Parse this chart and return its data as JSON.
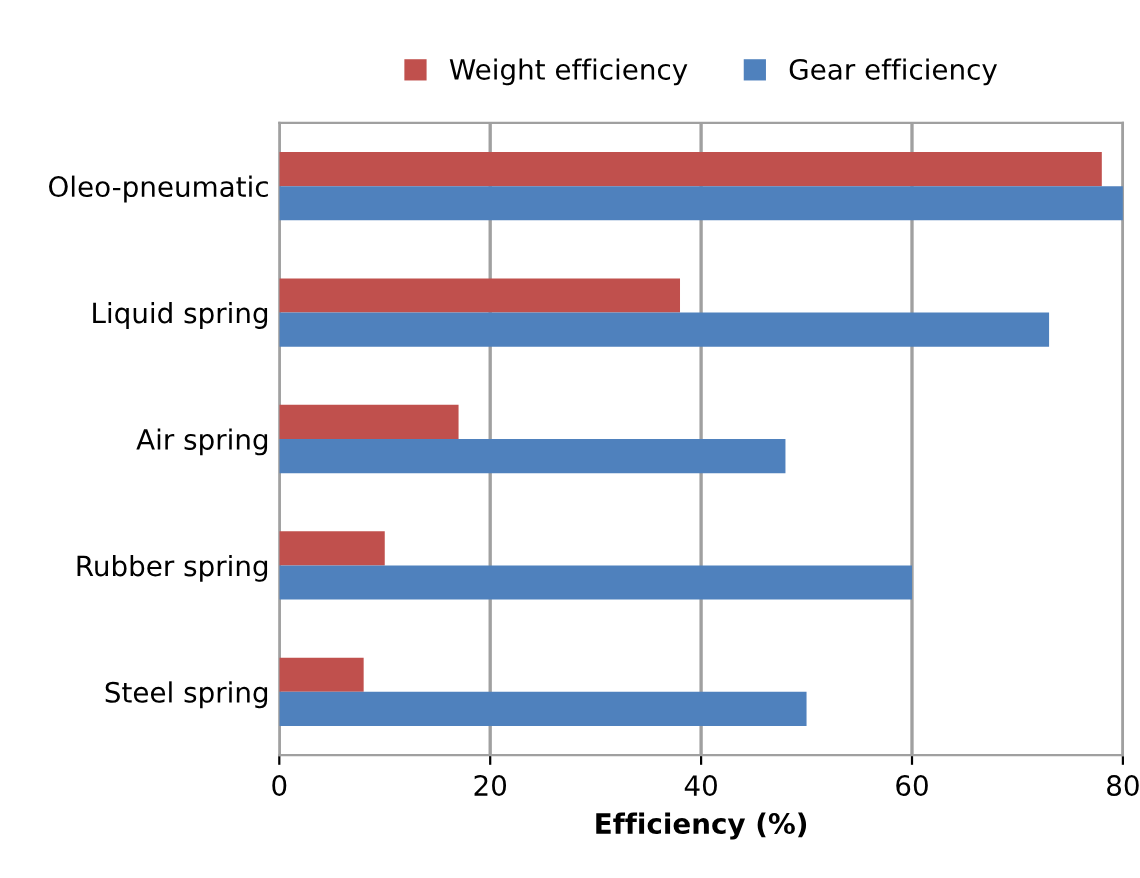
{
  "chart_data": {
    "type": "bar",
    "orientation": "horizontal",
    "categories": [
      "Oleo-pneumatic",
      "Liquid spring",
      "Air spring",
      "Rubber spring",
      "Steel spring"
    ],
    "series": [
      {
        "name": "Weight efficiency",
        "color": "#c0504d",
        "values": [
          78,
          38,
          17,
          10,
          8
        ]
      },
      {
        "name": "Gear efficiency",
        "color": "#4f81bd",
        "values": [
          80,
          73,
          48,
          60,
          50
        ]
      }
    ],
    "xlabel": "Efficiency (%)",
    "xlim": [
      0,
      80
    ],
    "xticks": [
      0,
      20,
      40,
      60,
      80
    ],
    "grid": "x",
    "legend": "top"
  }
}
